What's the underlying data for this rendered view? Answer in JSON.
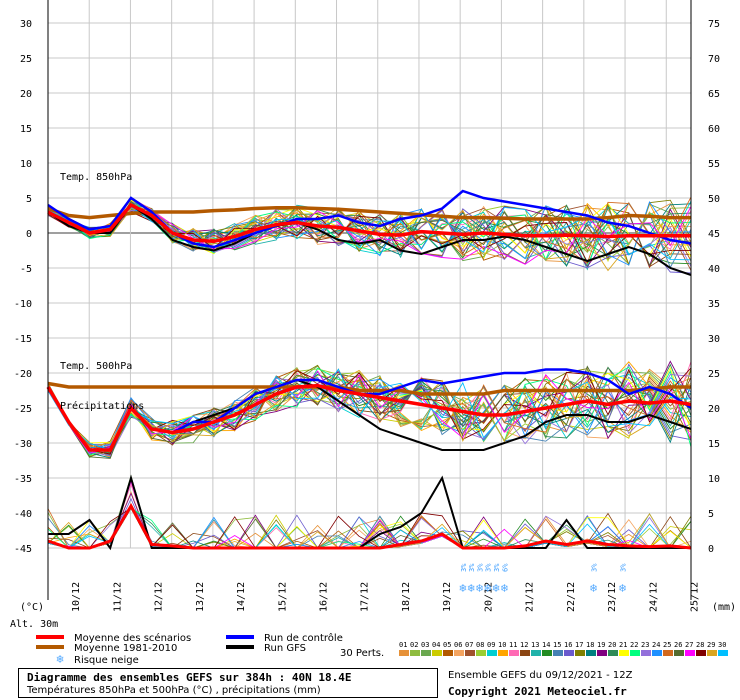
{
  "chart_data": {
    "type": "line",
    "title": "Diagramme des ensembles GEFS sur 384h : 40N 18.4E",
    "subtitle": "Températures 850hPa et 500hPa (°C) , précipitations (mm)",
    "left_axis_label": "(°C)",
    "right_axis_label": "(mm)",
    "altitude_label": "Alt. 30m",
    "left_ticks": [
      30,
      25,
      20,
      15,
      10,
      5,
      0,
      -5,
      -10,
      -15,
      -20,
      -25,
      -30,
      -35,
      -40,
      -45
    ],
    "right_ticks": [
      75,
      70,
      65,
      60,
      55,
      50,
      45,
      40,
      35,
      30,
      25,
      20,
      15,
      10,
      5,
      0
    ],
    "ylim_temp": [
      -45,
      30
    ],
    "ylim_precip": [
      0,
      75
    ],
    "x_dates": [
      "10/12",
      "11/12",
      "12/12",
      "13/12",
      "14/12",
      "15/12",
      "16/12",
      "17/12",
      "18/12",
      "19/12",
      "20/12",
      "21/12",
      "22/12",
      "23/12",
      "24/12",
      "25/12"
    ],
    "section_labels": [
      "Temp. 850hPa",
      "Temp. 500hPa",
      "Précipitations"
    ],
    "t850": {
      "mean": [
        3,
        1.5,
        0,
        0.5,
        4,
        2.5,
        0,
        -1,
        -1.2,
        -0.5,
        0.5,
        1.2,
        1.5,
        1,
        0.8,
        0.3,
        -0.2,
        -0.3,
        0.2,
        0,
        -0.2,
        0,
        -0.2,
        -0.4,
        -0.4,
        -0.3,
        -0.4,
        -0.5,
        -0.4,
        -0.4,
        -0.4,
        -0.4
      ],
      "climatology": [
        3.5,
        2.5,
        2.2,
        2.5,
        2.8,
        3,
        3,
        3,
        3.2,
        3.3,
        3.5,
        3.6,
        3.6,
        3.5,
        3.4,
        3.2,
        3,
        2.8,
        2.6,
        2.4,
        2.2,
        2.2,
        2.1,
        2,
        2,
        2,
        2,
        2.2,
        2.5,
        2.4,
        2.2,
        2.2
      ],
      "control": [
        4,
        2,
        0.5,
        1,
        5,
        3,
        0,
        -1.5,
        -2,
        -1,
        0,
        1,
        2,
        2,
        2.5,
        1.5,
        1,
        2,
        2.5,
        3.5,
        6,
        5,
        4.5,
        4,
        3.5,
        3,
        2.5,
        1.5,
        1,
        0,
        -1,
        -1.5
      ],
      "gfs": [
        3,
        1,
        0,
        0,
        4,
        2,
        -1,
        -2,
        -2.5,
        -1.5,
        0,
        1,
        1.5,
        0.5,
        -1,
        -1.5,
        -1,
        -2.5,
        -3,
        -2,
        -1,
        -1,
        -0.5,
        -1,
        -2,
        -3,
        -4,
        -3,
        -2,
        -3,
        -5,
        -6
      ]
    },
    "t500": {
      "mean": [
        -22,
        -27,
        -31,
        -31,
        -25,
        -28,
        -28.5,
        -28,
        -27,
        -26,
        -24.5,
        -23,
        -22,
        -21.8,
        -22.5,
        -23,
        -23.5,
        -24,
        -24.5,
        -25,
        -25.5,
        -26,
        -26,
        -25.5,
        -25,
        -24.5,
        -24,
        -24.5,
        -24,
        -24.3,
        -24,
        -24.5
      ],
      "climatology": [
        -21.5,
        -22,
        -22,
        -22,
        -22,
        -22,
        -22,
        -22,
        -22,
        -22,
        -22,
        -22,
        -22,
        -22,
        -22,
        -22.5,
        -22.5,
        -22.5,
        -23,
        -23,
        -23,
        -23,
        -22.5,
        -22.5,
        -22.5,
        -22.5,
        -22.5,
        -22.5,
        -22.5,
        -22.3,
        -22,
        -22
      ],
      "control": [
        -22,
        -27,
        -31,
        -31,
        -25,
        -28,
        -28.5,
        -27,
        -27,
        -25,
        -23,
        -22,
        -21,
        -21,
        -22,
        -23,
        -23,
        -22,
        -21,
        -21.5,
        -21,
        -20.5,
        -20,
        -20,
        -19.5,
        -19.5,
        -20,
        -21,
        -23,
        -22,
        -23,
        -25
      ],
      "gfs": [
        -22,
        -27,
        -31,
        -31,
        -25,
        -28,
        -28.5,
        -27,
        -26,
        -25,
        -23,
        -22,
        -21,
        -22,
        -24,
        -26,
        -28,
        -29,
        -30,
        -31,
        -31,
        -31,
        -30,
        -29,
        -27,
        -26,
        -26,
        -27,
        -27,
        -26,
        -27,
        -28
      ]
    },
    "precip": {
      "mean": [
        1,
        0,
        0,
        1,
        6,
        0.5,
        0.3,
        0,
        0,
        0,
        0,
        0,
        0,
        0,
        0,
        0,
        0,
        0.5,
        1,
        2,
        0,
        0,
        0,
        0.3,
        1,
        0.5,
        1,
        0.5,
        0.3,
        0.2,
        0.3,
        0
      ],
      "gfs": [
        2,
        2,
        4,
        0,
        10,
        0,
        0,
        0,
        0,
        0,
        0,
        0,
        0,
        0,
        0,
        0,
        2,
        3,
        5,
        10,
        0,
        0,
        0,
        0,
        0,
        4,
        0,
        0,
        0,
        0,
        0,
        0
      ]
    },
    "snow_markers": [
      {
        "x_index": 20.0,
        "pct": "3%"
      },
      {
        "x_index": 20.4,
        "pct": "3%"
      },
      {
        "x_index": 20.8,
        "pct": "3%"
      },
      {
        "x_index": 21.2,
        "pct": "3%"
      },
      {
        "x_index": 21.6,
        "pct": "3%"
      },
      {
        "x_index": 22.0,
        "pct": "6%"
      },
      {
        "x_index": 26.3,
        "pct": "3%"
      },
      {
        "x_index": 27.7,
        "pct": "3%"
      }
    ],
    "legend": [
      {
        "label": "Moyenne des scénarios",
        "color": "#ff0000"
      },
      {
        "label": "Moyenne 1981-2010",
        "color": "#b35900"
      },
      {
        "label": "Run de contrôle",
        "color": "#0000ff"
      },
      {
        "label": "Run GFS",
        "color": "#000000"
      }
    ],
    "snow_legend": "Risque neige",
    "perts_label": "30 Perts.",
    "pert_numbers": [
      "01",
      "02",
      "03",
      "04",
      "05",
      "06",
      "07",
      "08",
      "09",
      "10",
      "11",
      "12",
      "13",
      "14",
      "15",
      "16",
      "17",
      "18",
      "19",
      "20",
      "21",
      "22",
      "23",
      "24",
      "25",
      "26",
      "27",
      "28",
      "29",
      "30"
    ],
    "pert_colors": [
      "#e69138",
      "#8fbc3f",
      "#6aa84f",
      "#cccc00",
      "#b35900",
      "#f4a460",
      "#a0522d",
      "#9acd32",
      "#00ced1",
      "#ffa500",
      "#ff69b4",
      "#8b4513",
      "#20b2aa",
      "#228b22",
      "#4682b4",
      "#6a5acd",
      "#808000",
      "#008080",
      "#800080",
      "#2e8b57",
      "#ffff00",
      "#00ff7f",
      "#9370db",
      "#1e90ff",
      "#d2691e",
      "#556b2f",
      "#ff00ff",
      "#800000",
      "#daa520",
      "#00bfff"
    ]
  },
  "footer": {
    "title": "Diagramme des ensembles GEFS sur 384h : 40N 18.4E",
    "subtitle": "Températures 850hPa et 500hPa (°C) , précipitations (mm)",
    "run": "Ensemble GEFS du 09/12/2021 - 12Z",
    "copyright": "Copyright 2021 Meteociel.fr"
  }
}
